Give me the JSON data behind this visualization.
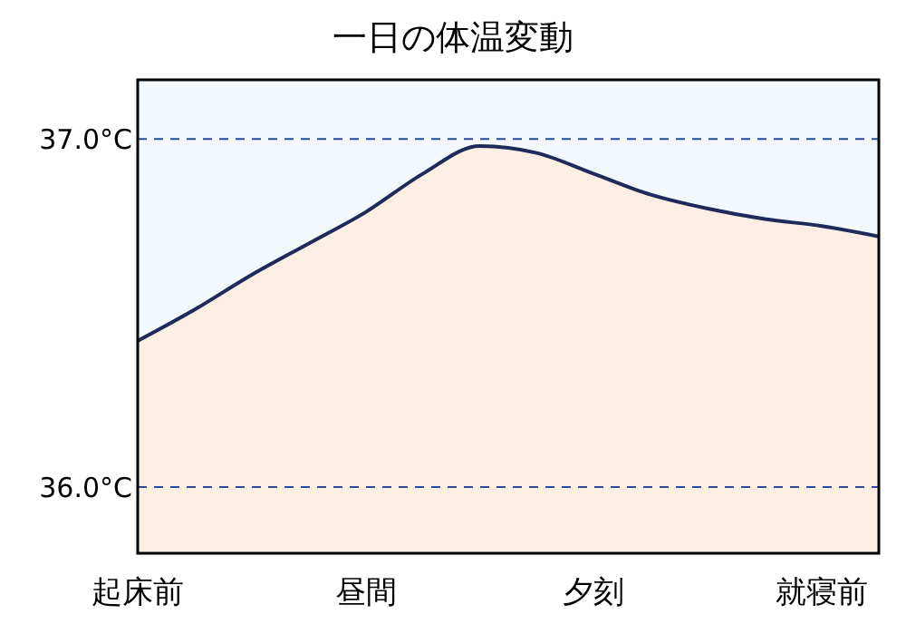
{
  "chart_data": {
    "type": "area",
    "title": "一日の体温変動",
    "categories": [
      "起床前",
      null,
      null,
      null,
      "昼間",
      null,
      null,
      null,
      "夕刻",
      null,
      null,
      null,
      "就寝前",
      null
    ],
    "series": [
      {
        "color": "#1e2a5a",
        "values": [
          36.42,
          36.51,
          36.61,
          36.7,
          36.79,
          36.9,
          36.98,
          36.96,
          36.9,
          36.84,
          36.8,
          36.77,
          36.75,
          36.72
        ]
      }
    ],
    "ylim": [
      35.81,
      37.17
    ],
    "yticks": [
      {
        "value": 36,
        "label": "36.0°C"
      },
      {
        "value": 37,
        "label": "37.0°C"
      }
    ],
    "ref_lines": [
      {
        "axis": "y",
        "value": 37,
        "color": "#2a4a9a",
        "line_style": "dashed"
      },
      {
        "axis": "y",
        "value": 36,
        "color": "#2a4a9a",
        "line_style": "dashed"
      }
    ]
  }
}
